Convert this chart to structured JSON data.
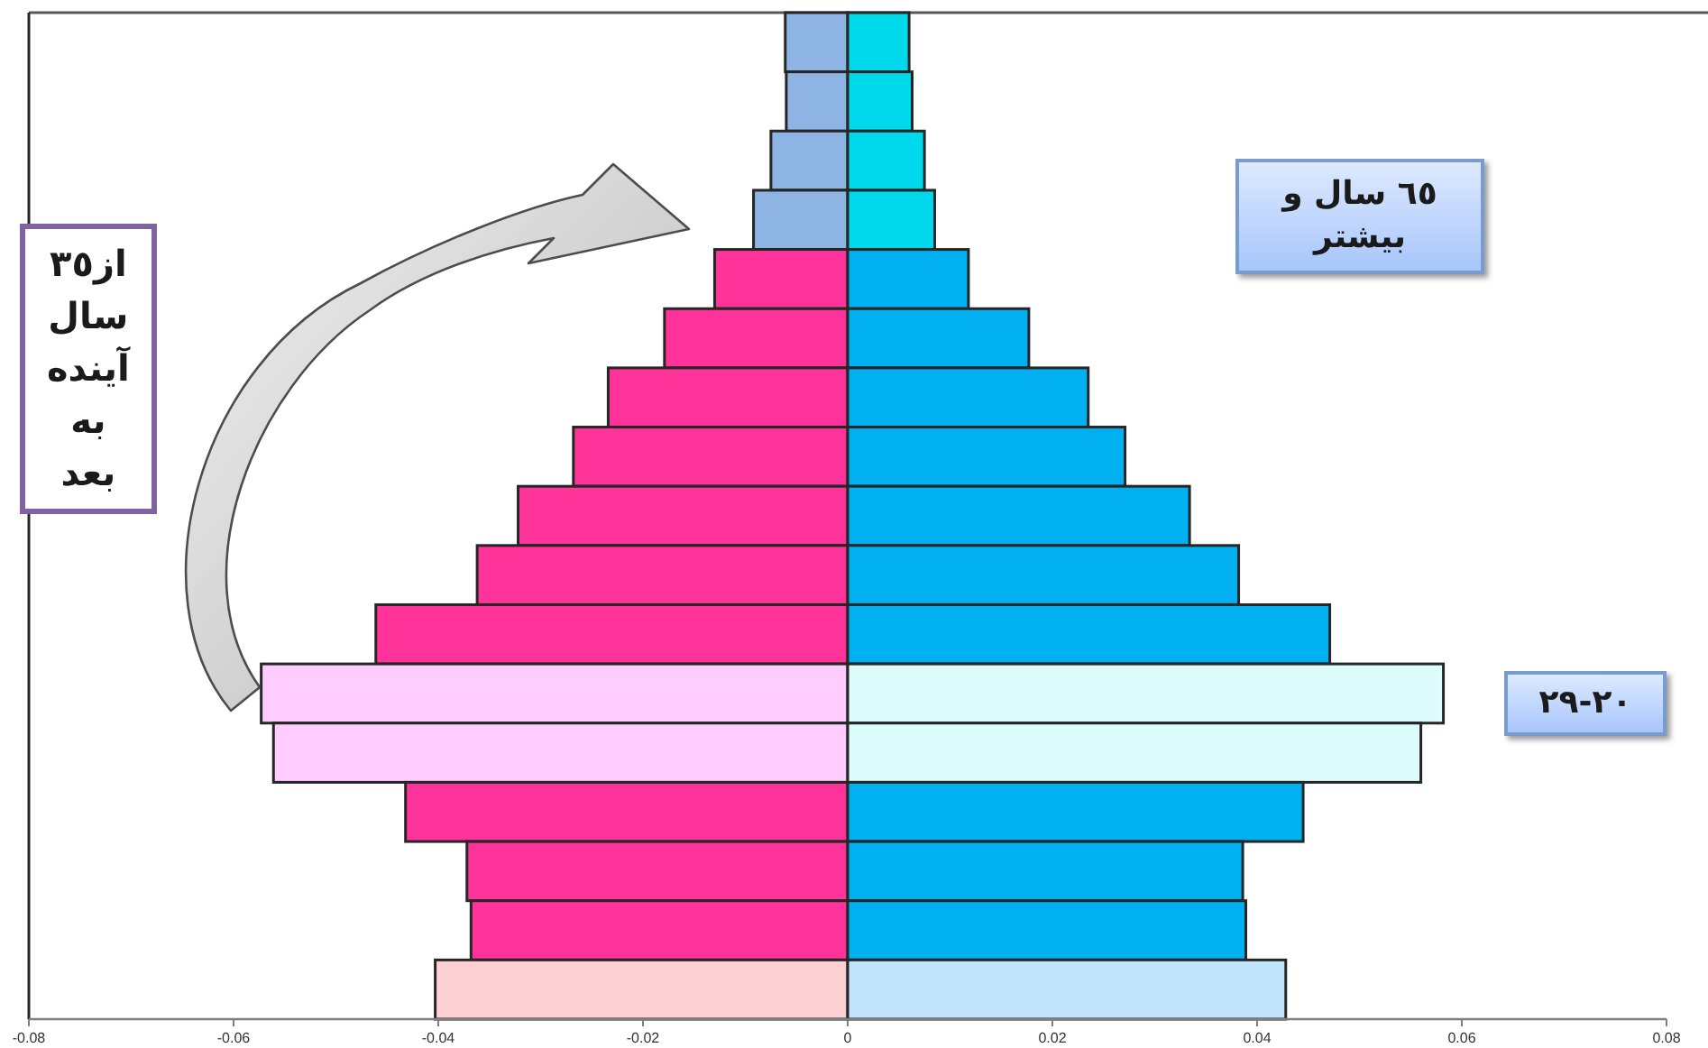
{
  "chart_data": {
    "type": "bar",
    "orientation": "horizontal",
    "stacked": true,
    "categories": [
      null,
      null,
      null,
      null,
      null,
      null,
      null,
      null,
      null,
      null,
      null,
      null,
      null,
      null,
      null,
      null,
      null
    ],
    "series": [
      {
        "colors": [
          "#8eb4e3",
          "#8eb4e3",
          "#8eb4e3",
          "#8eb4e3",
          "#ff3399",
          "#ff3399",
          "#ff3399",
          "#ff3399",
          "#ff3399",
          "#ff3399",
          "#ff3399",
          "#ffccff",
          "#ffccff",
          "#ff3399",
          "#ff3399",
          "#ff3399",
          "#fdd0d4"
        ],
        "values": [
          -0.0061,
          -0.006,
          -0.0075,
          -0.0092,
          -0.013,
          -0.0179,
          -0.0234,
          -0.0268,
          -0.0322,
          -0.0362,
          -0.0461,
          -0.0573,
          -0.0561,
          -0.0432,
          -0.0372,
          -0.0368,
          -0.0403
        ]
      },
      {
        "colors": [
          "#00d8ec",
          "#00d8ec",
          "#00d8ec",
          "#00d8ec",
          "#00b0f0",
          "#00b0f0",
          "#00b0f0",
          "#00b0f0",
          "#00b0f0",
          "#00b0f0",
          "#00b0f0",
          "#ddfdfd",
          "#ddfdfd",
          "#00b0f0",
          "#00b0f0",
          "#00b0f0",
          "#bfe4fb"
        ],
        "values": [
          0.006,
          0.0063,
          0.0075,
          0.0085,
          0.0118,
          0.0177,
          0.0235,
          0.0271,
          0.0334,
          0.0382,
          0.0471,
          0.0582,
          0.056,
          0.0445,
          0.0386,
          0.0389,
          0.0428
        ]
      }
    ],
    "xlim": [
      -0.08,
      0.08
    ],
    "xticks": [
      -0.08,
      -0.06,
      -0.04,
      -0.02,
      0,
      0.02,
      0.04,
      0.06,
      0.08
    ],
    "tick_labels": "x",
    "annotations": [
      "از٣٥ سال آینده به بعد",
      "٦٥ سال و بیشتر",
      "٢٠-٢٩"
    ]
  }
}
